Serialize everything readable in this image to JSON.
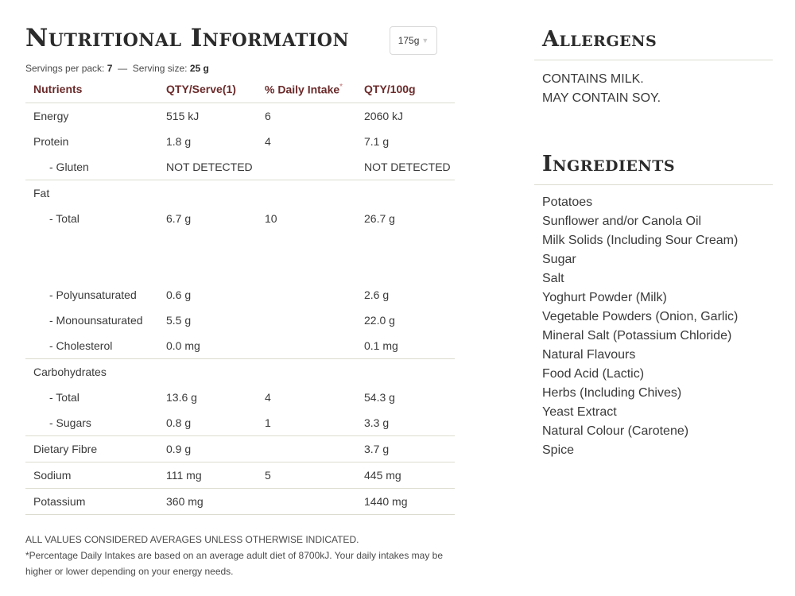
{
  "nutrition": {
    "title": "Nutritional Information",
    "size_select": {
      "value": "175g",
      "icon": "chevron-down-icon"
    },
    "servings_per_pack_label": "Servings per pack:",
    "servings_per_pack_value": "7",
    "separator": "—",
    "serving_size_label": "Serving size:",
    "serving_size_value": "25 g",
    "columns": [
      "Nutrients",
      "QTY/Serve(1)",
      "% Daily Intake",
      "QTY/100g"
    ],
    "daily_intake_marker": "*",
    "rows": [
      {
        "name": "Energy",
        "serve": "515 kJ",
        "daily": "6",
        "per100": "2060 kJ"
      },
      {
        "name": "Protein",
        "serve": "1.8 g",
        "daily": "4",
        "per100": "7.1 g"
      },
      {
        "name": "- Gluten",
        "serve": "NOT DETECTED",
        "daily": "",
        "per100": "NOT DETECTED"
      },
      {
        "name": "Fat",
        "serve": "",
        "daily": "",
        "per100": ""
      },
      {
        "name": "- Total",
        "serve": "6.7 g",
        "daily": "10",
        "per100": "26.7 g"
      },
      {
        "name": "- Polyunsaturated",
        "serve": "0.6 g",
        "daily": "",
        "per100": "2.6 g"
      },
      {
        "name": "- Monounsaturated",
        "serve": "5.5 g",
        "daily": "",
        "per100": "22.0 g"
      },
      {
        "name": "- Cholesterol",
        "serve": "0.0 mg",
        "daily": "",
        "per100": "0.1 mg"
      },
      {
        "name": "Carbohydrates",
        "serve": "",
        "daily": "",
        "per100": ""
      },
      {
        "name": "- Total",
        "serve": "13.6 g",
        "daily": "4",
        "per100": "54.3 g"
      },
      {
        "name": "- Sugars",
        "serve": "0.8 g",
        "daily": "1",
        "per100": "3.3 g"
      },
      {
        "name": "Dietary Fibre",
        "serve": "0.9 g",
        "daily": "",
        "per100": "3.7 g"
      },
      {
        "name": "Sodium",
        "serve": "111 mg",
        "daily": "5",
        "per100": "445 mg"
      },
      {
        "name": "Potassium",
        "serve": "360 mg",
        "daily": "",
        "per100": "1440 mg"
      }
    ],
    "footnote_1": "ALL VALUES CONSIDERED AVERAGES UNLESS OTHERWISE INDICATED.",
    "footnote_2": "*Percentage Daily Intakes are based on an average adult diet of 8700kJ. Your daily intakes may be higher or lower depending on your energy needs."
  },
  "allergens": {
    "title": "Allergens",
    "items": [
      "CONTAINS MILK.",
      "MAY CONTAIN SOY."
    ]
  },
  "ingredients": {
    "title": "Ingredients",
    "items": [
      "Potatoes",
      "Sunflower and/or Canola Oil",
      "Milk Solids (Including Sour Cream)",
      "Sugar",
      "Salt",
      "Yoghurt Powder (Milk)",
      "Vegetable Powders (Onion, Garlic)",
      "Mineral Salt (Potassium Chloride)",
      "Natural Flavours",
      "Food Acid (Lactic)",
      "Herbs (Including Chives)",
      "Yeast Extract",
      "Natural Colour (Carotene)",
      "Spice"
    ]
  },
  "colors": {
    "header_text": "#6b2a2a",
    "rule": "#dcdcd0",
    "body_text": "#3a3a3a"
  }
}
